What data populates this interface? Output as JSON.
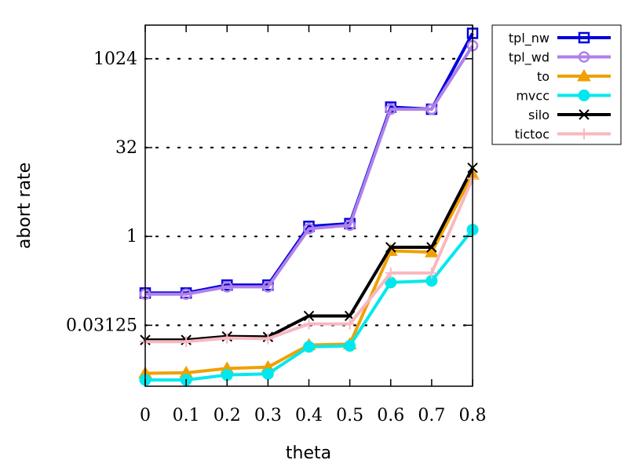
{
  "chart_data": {
    "type": "line",
    "title": "",
    "xlabel": "theta",
    "ylabel": "abort rate",
    "y_scale": "log2",
    "x": [
      0,
      0.1,
      0.2,
      0.3,
      0.4,
      0.5,
      0.6,
      0.7,
      0.8
    ],
    "x_tick_labels": [
      "0",
      "0.1",
      "0.2",
      "0.3",
      "0.4",
      "0.5",
      "0.6",
      "0.7",
      "0.8"
    ],
    "y_ticks": [
      0.03125,
      1,
      32,
      1024
    ],
    "y_tick_labels": [
      "0.03125",
      "1",
      "32",
      "1024"
    ],
    "ylim": [
      0.0029,
      3800
    ],
    "grid": "y-major-dotted",
    "legend_position": "top-right-outside",
    "series": [
      {
        "name": "tpl_nw",
        "color": "#0000dd",
        "marker": "square",
        "values": [
          0.11,
          0.11,
          0.15,
          0.15,
          1.48,
          1.65,
          155,
          143,
          2760
        ]
      },
      {
        "name": "tpl_wd",
        "color": "#b080e8",
        "marker": "circle",
        "values": [
          0.105,
          0.105,
          0.14,
          0.14,
          1.35,
          1.55,
          143,
          143,
          1700
        ]
      },
      {
        "name": "to",
        "color": "#f0a000",
        "marker": "triangle",
        "values": [
          0.0048,
          0.0049,
          0.0058,
          0.0061,
          0.0145,
          0.015,
          0.57,
          0.54,
          11.2
        ]
      },
      {
        "name": "mvcc",
        "color": "#00e8ee",
        "marker": "filled-circle",
        "values": [
          0.0037,
          0.0037,
          0.0045,
          0.0047,
          0.0135,
          0.014,
          0.166,
          0.177,
          1.3
        ]
      },
      {
        "name": "silo",
        "color": "#000000",
        "marker": "x",
        "values": [
          0.0176,
          0.0176,
          0.0202,
          0.0198,
          0.045,
          0.045,
          0.655,
          0.655,
          14.5
        ]
      },
      {
        "name": "tictoc",
        "color": "#f8b8c0",
        "marker": "plus",
        "values": [
          0.0165,
          0.0165,
          0.019,
          0.0185,
          0.033,
          0.033,
          0.24,
          0.24,
          9.6
        ]
      }
    ]
  }
}
